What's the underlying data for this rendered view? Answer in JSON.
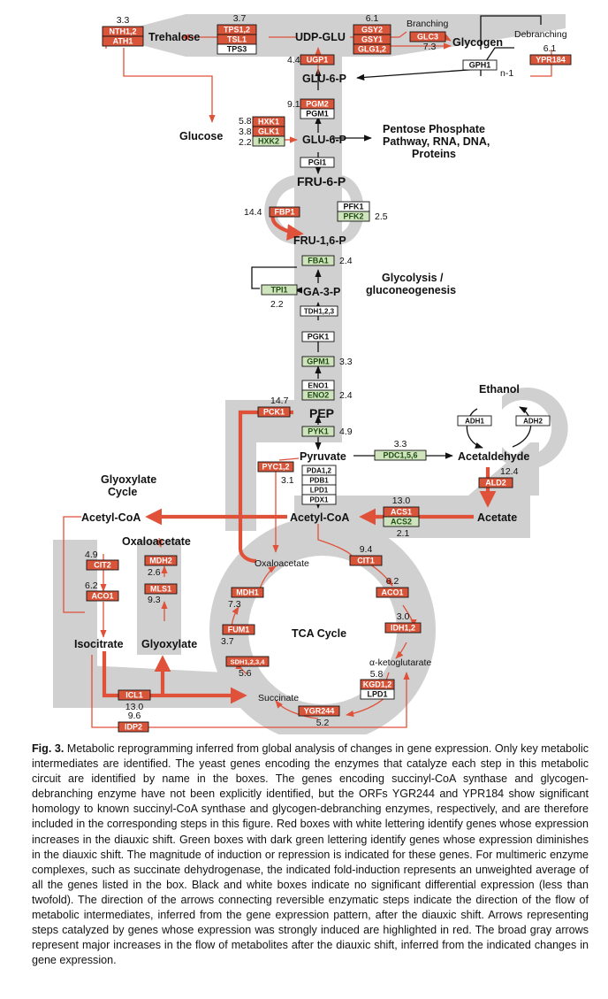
{
  "metabolites": {
    "trehalose": "Trehalose",
    "udp_glu": "UDP-GLU",
    "glycogen": "Glycogen",
    "glu6p_top": "GLU-6-P",
    "glucose": "Glucose",
    "glu6p": "GLU-6-P",
    "ppp": [
      "Pentose Phosphate",
      "Pathway, RNA, DNA,",
      "Proteins"
    ],
    "fru6p": "FRU-6-P",
    "fru16p": "FRU-1,6-P",
    "ga3p": "GA-3-P",
    "pep": "PEP",
    "pyruvate": "Pyruvate",
    "ethanol": "Ethanol",
    "acetaldehyde": "Acetaldehyde",
    "acetate": "Acetate",
    "acetylcoa_mid": "Acetyl-CoA",
    "acetylcoa_left": "Acetyl-CoA",
    "oxaloacetate_left": "Oxaloacetate",
    "oxaloacetate_tca": "Oxaloacetate",
    "isocitrate": "Isocitrate",
    "glyoxylate": "Glyoxylate",
    "akg": "α-ketoglutarate",
    "succinate": "Succinate"
  },
  "labels": {
    "branching": "Branching",
    "debranching": "Debranching",
    "glycolysis": [
      "Glycolysis /",
      "gluconeogenesis"
    ],
    "glyoxylate_cycle": [
      "Glyoxylate",
      "Cycle"
    ],
    "tca_cycle": "TCA Cycle",
    "n1": "n-1"
  },
  "enzymes": {
    "nth": {
      "lines": [
        "NTH1,2",
        "ATH1"
      ],
      "value": "3.3"
    },
    "tps": {
      "lines": [
        "TPS1,2",
        "TSL1"
      ],
      "extra": "TPS3",
      "value": "3.7"
    },
    "gsy": {
      "lines": [
        "GSY2",
        "GSY1",
        "GLG1,2"
      ],
      "value": "6.1"
    },
    "glc3": {
      "lines": [
        "GLC3"
      ],
      "value": "7.3"
    },
    "gph1": {
      "lines": [
        "GPH1"
      ]
    },
    "ypr184": {
      "lines": [
        "YPR184"
      ],
      "value": "6.1"
    },
    "ugp1": {
      "lines": [
        "UGP1"
      ],
      "value": "4.4"
    },
    "pgm2": {
      "lines": [
        "PGM2"
      ],
      "extra": "PGM1",
      "value": "9.1"
    },
    "hxk": {
      "red": [
        "HXK1",
        "GLK1"
      ],
      "green": "HXK2",
      "values": [
        "5.8",
        "3.8",
        "2.2"
      ]
    },
    "pgi1": {
      "lines": [
        "PGI1"
      ]
    },
    "fbp1": {
      "lines": [
        "FBP1"
      ],
      "value": "14.4"
    },
    "pfk": {
      "white": "PFK1",
      "green": "PFK2",
      "value": "2.5"
    },
    "fba1": {
      "lines": [
        "FBA1"
      ],
      "value": "2.4"
    },
    "tpi1": {
      "lines": [
        "TPI1"
      ],
      "value": "2.2"
    },
    "tdh": {
      "lines": [
        "TDH1,2,3"
      ]
    },
    "pgk1": {
      "lines": [
        "PGK1"
      ]
    },
    "gpm1": {
      "lines": [
        "GPM1"
      ],
      "value": "3.3"
    },
    "eno": {
      "white": "ENO1",
      "green": "ENO2",
      "value": "2.4"
    },
    "pck1": {
      "lines": [
        "PCK1"
      ],
      "value": "14.7"
    },
    "pyk1": {
      "lines": [
        "PYK1"
      ],
      "value": "4.9"
    },
    "pdc": {
      "lines": [
        "PDC1,5,6"
      ],
      "value": "3.3"
    },
    "adh1": {
      "lines": [
        "ADH1"
      ]
    },
    "adh2": {
      "lines": [
        "ADH2"
      ]
    },
    "ald2": {
      "lines": [
        "ALD2"
      ],
      "value": "12.4"
    },
    "pyc": {
      "lines": [
        "PYC1,2"
      ],
      "value": "3.1"
    },
    "pda": {
      "lines": [
        "PDA1,2",
        "PDB1",
        "LPD1",
        "PDX1"
      ]
    },
    "acs": {
      "red": "ACS1",
      "green": "ACS2",
      "values": [
        "13.0",
        "2.1"
      ]
    },
    "cit2": {
      "lines": [
        "CIT2"
      ],
      "value": "4.9"
    },
    "aco1_left": {
      "lines": [
        "ACO1"
      ],
      "value": "6.2"
    },
    "mdh2": {
      "lines": [
        "MDH2"
      ],
      "value": "2.6"
    },
    "mls1": {
      "lines": [
        "MLS1"
      ],
      "value": "9.3"
    },
    "icl1": {
      "lines": [
        "ICL1"
      ],
      "value": "13.0"
    },
    "idp2": {
      "lines": [
        "IDP2"
      ],
      "value": "9.6"
    },
    "cit1": {
      "lines": [
        "CIT1"
      ],
      "value": "9.4"
    },
    "aco1_tca": {
      "lines": [
        "ACO1"
      ],
      "value": "6.2"
    },
    "idh": {
      "lines": [
        "IDH1,2"
      ],
      "value": "3.0"
    },
    "kgd": {
      "red": "KGD1,2",
      "white": "LPD1",
      "value": "5.8"
    },
    "ygr244": {
      "lines": [
        "YGR244"
      ],
      "value": "5.2"
    },
    "sdh": {
      "lines": [
        "SDH1,2,3,4"
      ],
      "value": "5.6"
    },
    "fum1": {
      "lines": [
        "FUM1"
      ],
      "value": "3.7"
    },
    "mdh1": {
      "lines": [
        "MDH1"
      ],
      "value": "7.3"
    }
  },
  "colors": {
    "red": "#d9553a",
    "green": "#cfe4bd",
    "gray": "#d0d0d0",
    "arrow_red": "#e0513a"
  },
  "caption": {
    "label": "Fig. 3.",
    "text": "Metabolic reprogramming inferred from global analysis of changes in gene expression. Only key metabolic intermediates are identified. The yeast genes encoding the enzymes that catalyze each step in this metabolic circuit are identified by name in the boxes. The genes encoding succinyl-CoA synthase and glycogen-debranching enzyme have not been explicitly identified, but the ORFs YGR244 and YPR184 show significant homology to known succinyl-CoA synthase and glycogen-debranching enzymes, respectively, and are therefore included in the corresponding steps in this figure. Red boxes with white lettering identify genes whose expression increases in the diauxic shift. Green boxes with dark green lettering identify genes whose expression diminishes in the diauxic shift. The magnitude of induction or repression is indicated for these genes. For multimeric enzyme complexes, such as succinate dehydrogenase, the indicated fold-induction represents an unweighted average of all the genes listed in the box. Black and white boxes indicate no significant differential expression (less than twofold). The direction of the arrows connecting reversible enzymatic steps indicate the direction of the flow of metabolic intermediates, inferred from the gene expression pattern, after the diauxic shift. Arrows representing steps catalyzed by genes whose expression was strongly induced are highlighted in red. The broad gray arrows represent major increases in the flow of metabolites after the diauxic shift, inferred from the indicated changes in gene expression."
  }
}
